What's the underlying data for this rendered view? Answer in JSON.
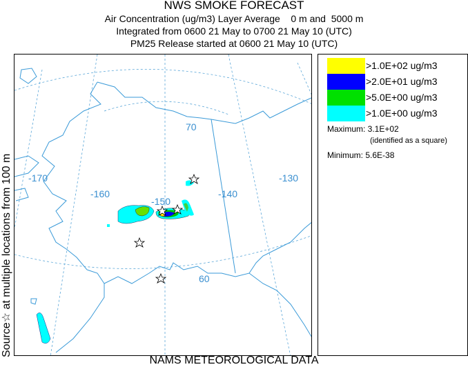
{
  "header": {
    "title": "NWS SMOKE FORECAST",
    "line1": "Air Concentration (ug/m3) Layer Average    0 m and  5000 m",
    "line2": "Integrated from 0600 21 May to 0700 21 May 10 (UTC)",
    "line3": "PM25 Release started at 0600 21 May 10 (UTC)"
  },
  "side_label": "Source☆ at multiple locations  from  100 m",
  "footer": "NAMS METEOROLOGICAL DATA",
  "map": {
    "longitude_labels": [
      "-170",
      "-160",
      "-150",
      "-140",
      "-130"
    ],
    "latitude_labels": [
      "70",
      "60"
    ],
    "source_icon": "star-icon"
  },
  "legend": {
    "items": [
      {
        "label": ">1.0E+02 ug/m3",
        "color": "#ffff00"
      },
      {
        "label": ">2.0E+01 ug/m3",
        "color": "#0000ff"
      },
      {
        "label": ">5.0E+00 ug/m3",
        "color": "#00e000"
      },
      {
        "label": ">1.0E+00 ug/m3",
        "color": "#00ffff"
      }
    ],
    "maximum": "Maximum: 3.1E+02",
    "maximum_note": "(identified as a square)",
    "minimum": "Minimum: 5.6E-38"
  }
}
